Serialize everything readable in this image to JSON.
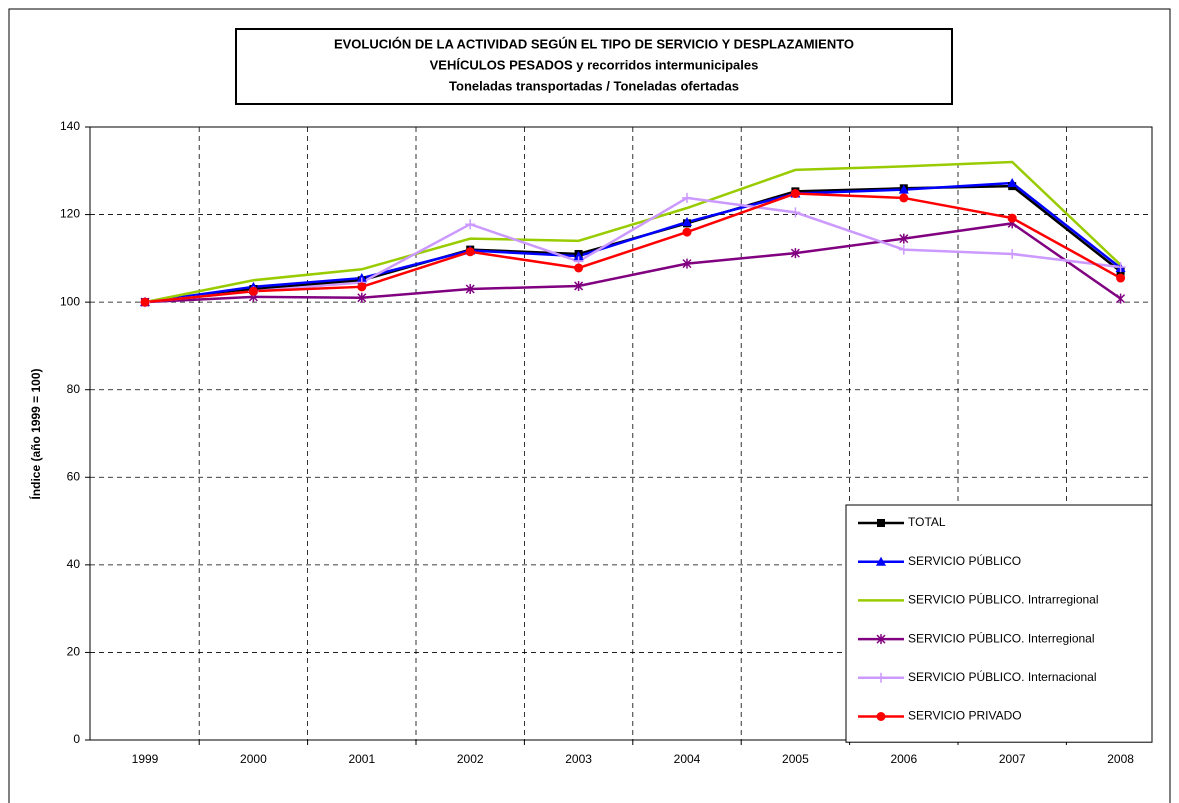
{
  "chart_data": {
    "type": "line",
    "title": [
      "EVOLUCIÓN DE LA ACTIVIDAD SEGÚN EL TIPO DE SERVICIO Y DESPLAZAMIENTO",
      "VEHÍCULOS PESADOS y recorridos intermunicipales",
      "Toneladas transportadas / Toneladas ofertadas"
    ],
    "y_label": "Índice (año 1999 = 100)",
    "categories": [
      "1999",
      "2000",
      "2001",
      "2002",
      "2003",
      "2004",
      "2005",
      "2006",
      "2007",
      "2008"
    ],
    "ylim": [
      0,
      140
    ],
    "yticks": [
      0,
      20,
      40,
      60,
      80,
      100,
      120,
      140
    ],
    "grid": true,
    "legend": "lower right",
    "series": [
      {
        "name": "TOTAL",
        "color": "#000000",
        "marker": "square",
        "values": [
          100,
          103,
          105,
          112,
          111,
          118,
          125.3,
          126,
          126.5,
          107
        ]
      },
      {
        "name": "SERVICIO PÚBLICO",
        "color": "#0000ff",
        "marker": "triangle",
        "values": [
          100,
          103.5,
          105.5,
          111.8,
          110.5,
          118.3,
          124.8,
          125.7,
          127.2,
          107.8
        ]
      },
      {
        "name": "SERVICIO PÚBLICO. Intrarregional",
        "color": "#99cc00",
        "marker": "none",
        "values": [
          100,
          105,
          107.5,
          114.5,
          114,
          121.5,
          130.2,
          131,
          132,
          108.5
        ]
      },
      {
        "name": "SERVICIO PÚBLICO. Interregional",
        "color": "#800080",
        "marker": "asterisk",
        "values": [
          100,
          101.2,
          101,
          103,
          103.7,
          108.8,
          111.2,
          114.5,
          118,
          100.8
        ]
      },
      {
        "name": "SERVICIO PÚBLICO. Internacional",
        "color": "#cc99ff",
        "marker": "plus",
        "values": [
          100,
          102.5,
          104.5,
          117.8,
          109.3,
          123.8,
          120.5,
          112,
          111,
          108
        ]
      },
      {
        "name": "SERVICIO PRIVADO",
        "color": "#ff0000",
        "marker": "circle",
        "values": [
          100,
          102.5,
          103.5,
          111.5,
          107.8,
          116,
          124.8,
          123.8,
          119.2,
          105.5
        ]
      }
    ]
  }
}
